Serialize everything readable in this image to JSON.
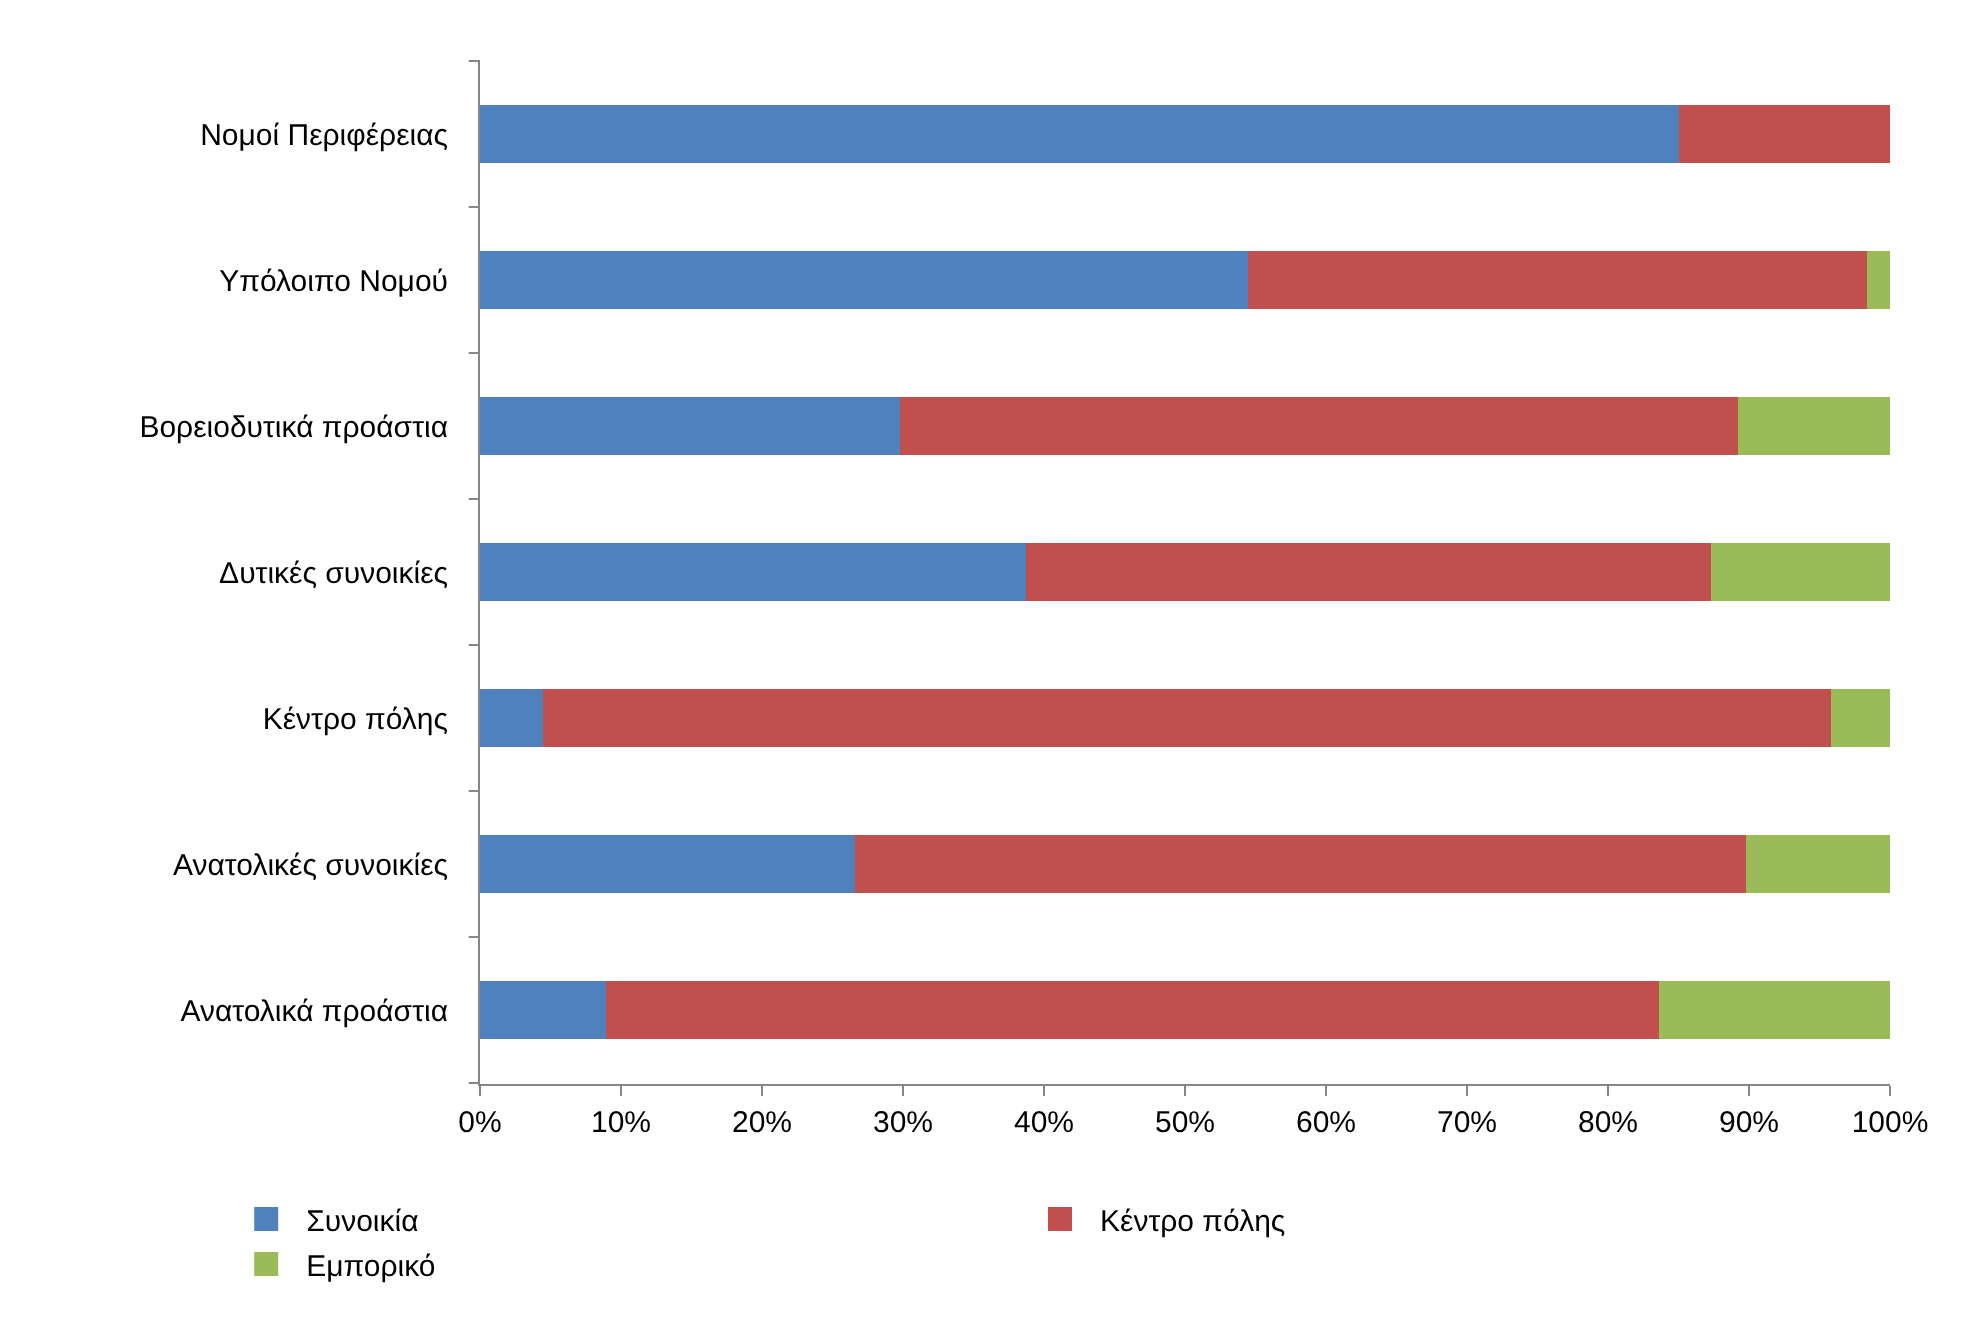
{
  "chart_data": {
    "type": "bar",
    "orientation": "horizontal",
    "stacked": true,
    "categories": [
      "Νομοί Περιφέρειας",
      "Υπόλοιπο Νομού",
      "Βορειοδυτικά προάστια",
      "Δυτικές συνοικίες",
      "Κέντρο πόλης",
      "Ανατολικές συνοικίες",
      "Ανατολικά προάστια"
    ],
    "series": [
      {
        "name": "Συνοικία",
        "color": "#4f81bd",
        "values": [
          85,
          54.5,
          29.8,
          38.7,
          4.5,
          26.6,
          8.9
        ]
      },
      {
        "name": "Κέντρο πόλης",
        "color": "#c0504d",
        "values": [
          15,
          43.9,
          59.4,
          48.6,
          91.3,
          63.2,
          74.7
        ]
      },
      {
        "name": "Εμπορικό",
        "color": "#9bbb59",
        "values": [
          0,
          1.6,
          10.8,
          12.7,
          4.2,
          10.2,
          16.4
        ]
      }
    ],
    "xlim": [
      0,
      100
    ],
    "xticks": [
      {
        "value": 0,
        "label": "0%"
      },
      {
        "value": 10,
        "label": "10%"
      },
      {
        "value": 20,
        "label": "20%"
      },
      {
        "value": 30,
        "label": "30%"
      },
      {
        "value": 40,
        "label": "40%"
      },
      {
        "value": 50,
        "label": "50%"
      },
      {
        "value": 60,
        "label": "60%"
      },
      {
        "value": 70,
        "label": "70%"
      },
      {
        "value": 80,
        "label": "80%"
      },
      {
        "value": 90,
        "label": "90%"
      },
      {
        "value": 100,
        "label": "100%"
      }
    ],
    "legend": "bottom"
  }
}
